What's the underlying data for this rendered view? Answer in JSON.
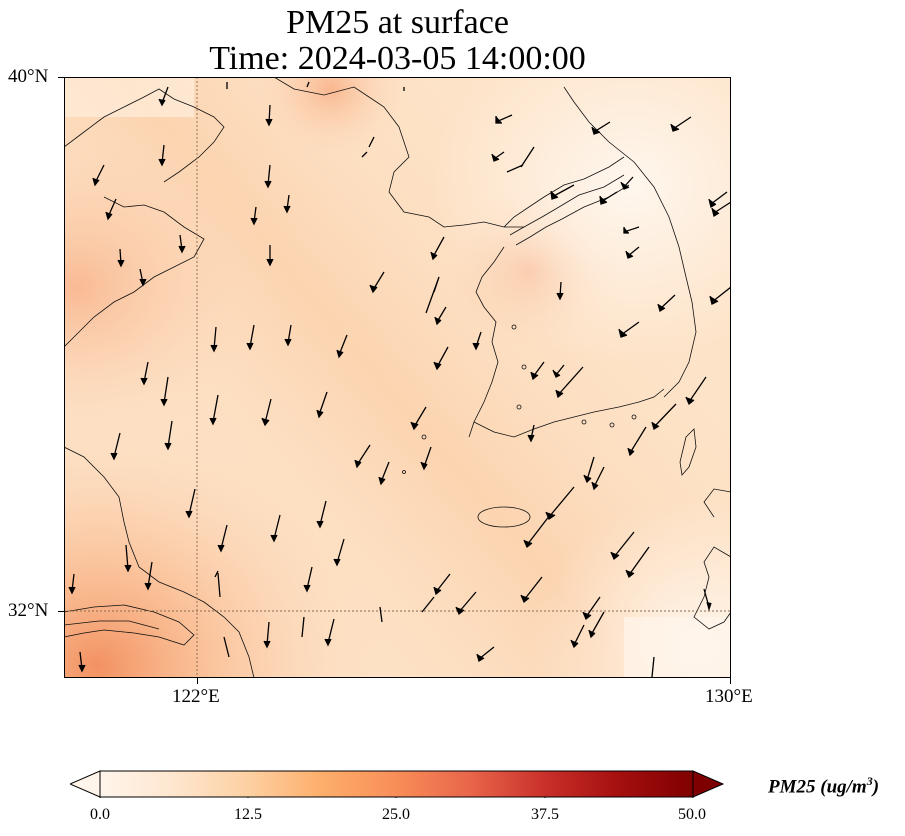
{
  "title": {
    "line1": "PM25 at surface",
    "line2": "Time: 2024-03-05 14:00:00"
  },
  "map": {
    "lat_labels": [
      "40°N",
      "32°N"
    ],
    "lon_labels": [
      "122°E",
      "130°E"
    ]
  },
  "colorbar": {
    "label": "PM25 (ug/m",
    "label_sup": "3",
    "label_end": ")",
    "ticks": [
      "0.0",
      "12.5",
      "25.0",
      "37.5",
      "50.0"
    ],
    "colors": [
      "#fff5eb",
      "#fee6ce",
      "#fdd0a2",
      "#fdae6b",
      "#fd8d3c",
      "#f16913",
      "#d94801",
      "#a63603",
      "#7f2704"
    ]
  }
}
